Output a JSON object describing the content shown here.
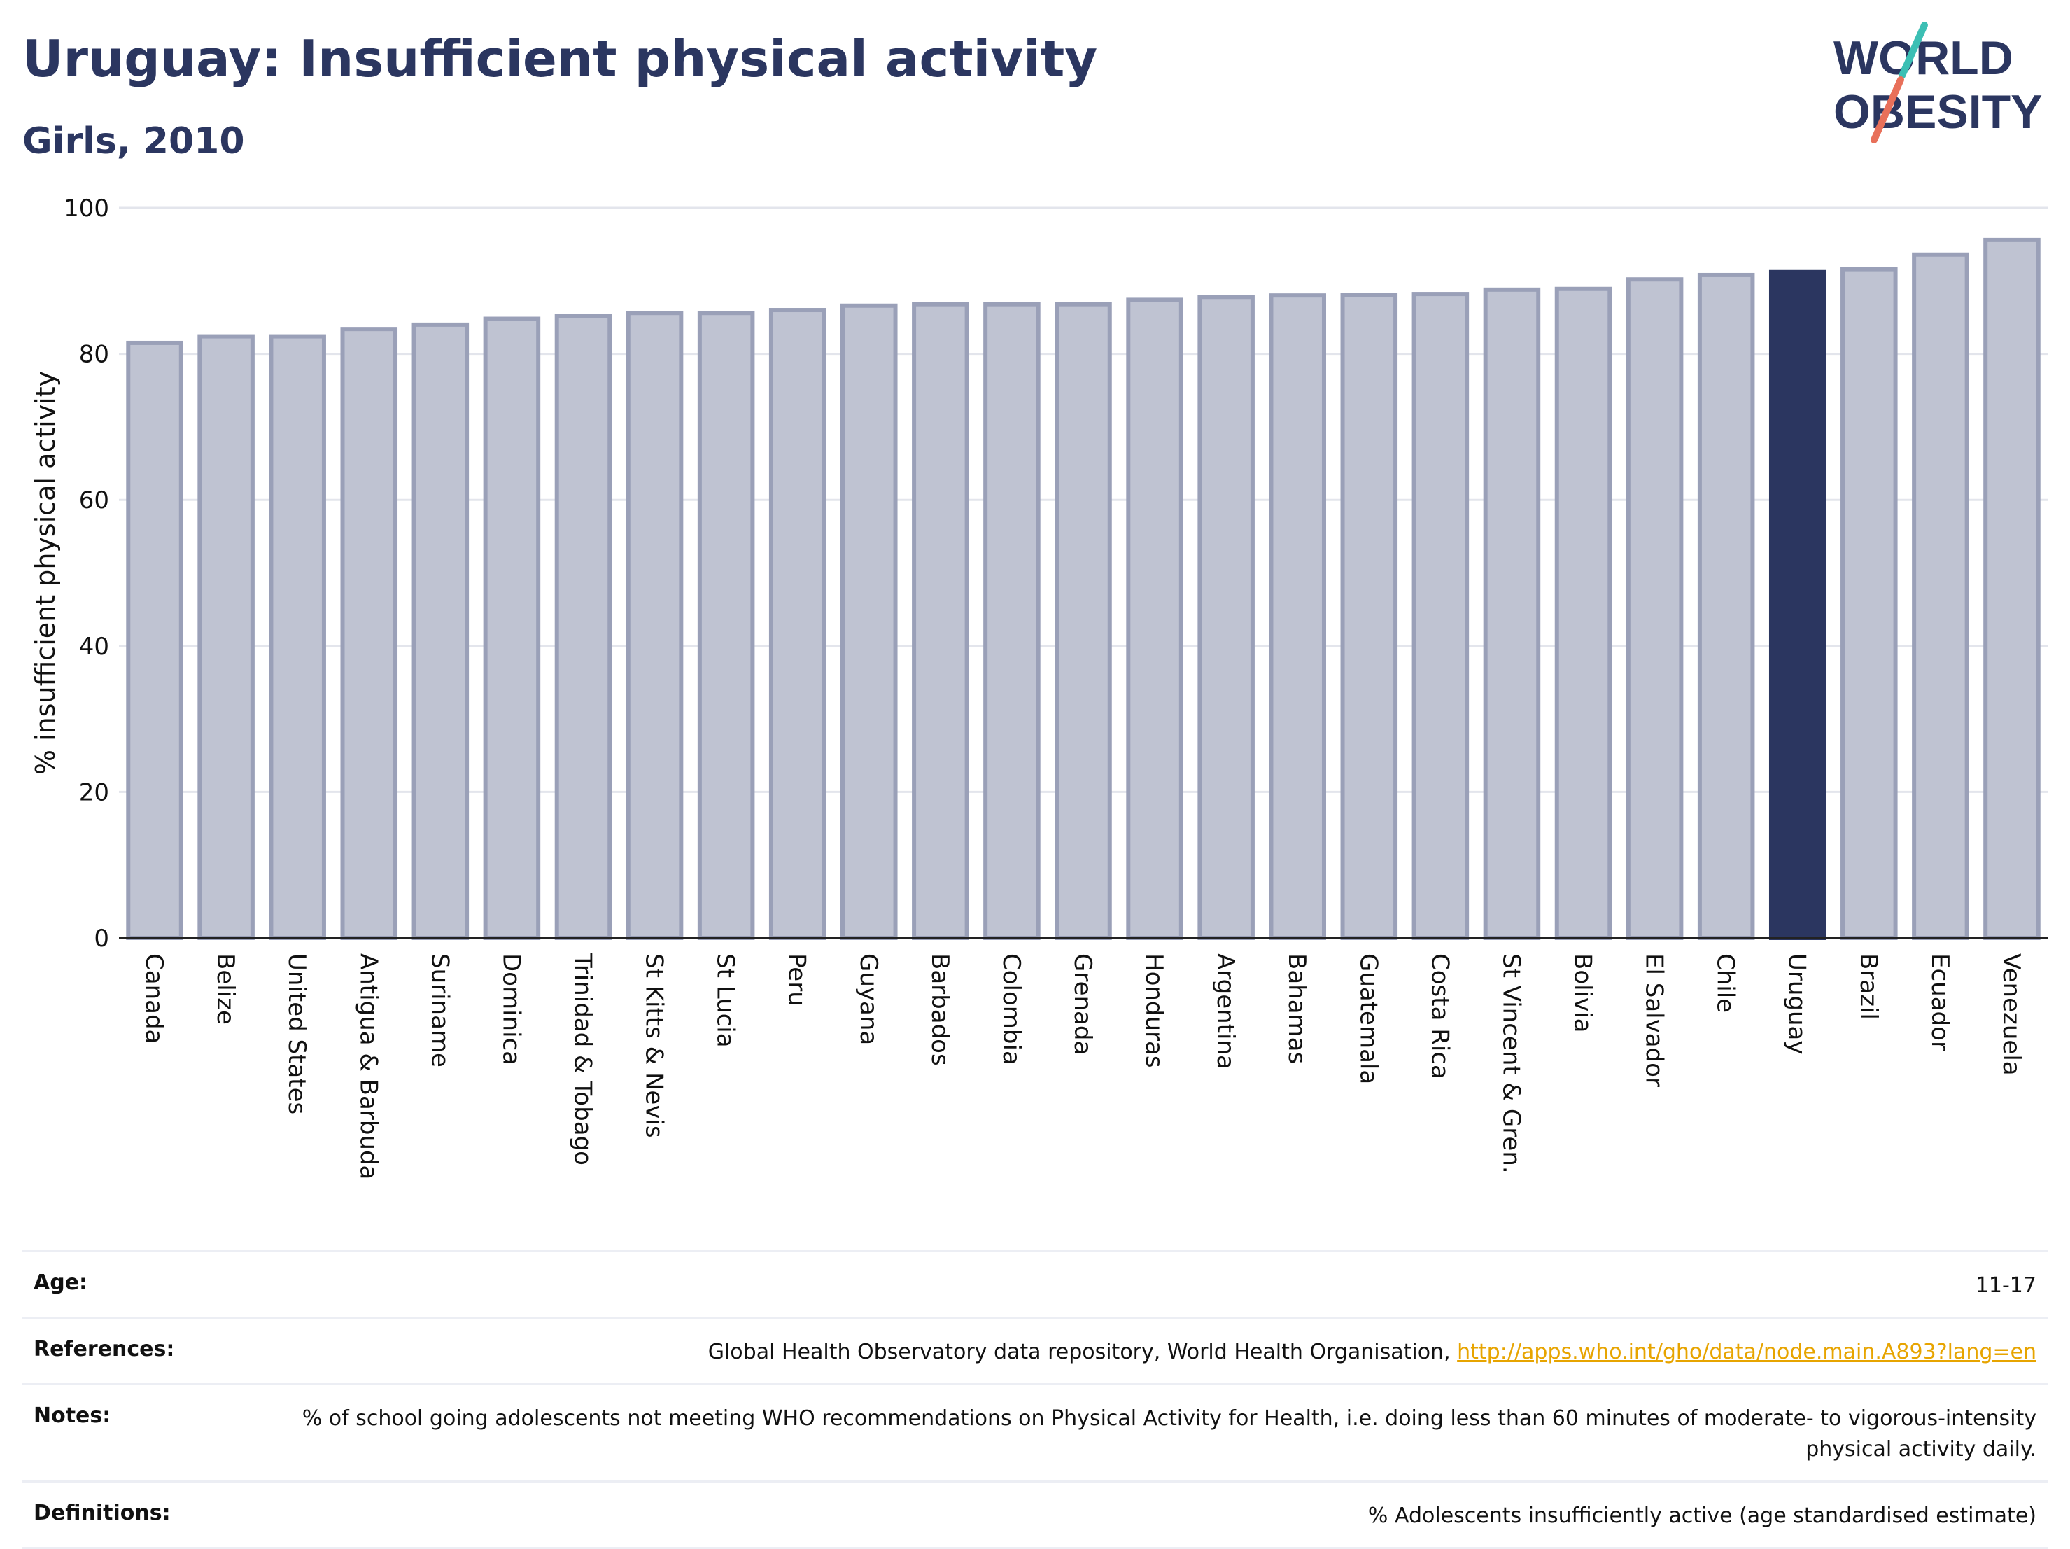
{
  "header": {
    "title": "Uruguay: Insufficient physical activity",
    "subtitle": "Girls, 2010"
  },
  "logo": {
    "line1": "WORLD",
    "line2": "OBESITY"
  },
  "chart_data": {
    "type": "bar",
    "ylabel": "% insufficient physical activity",
    "xlabel": "",
    "ylim": [
      0,
      100
    ],
    "yticks": [
      0,
      20,
      40,
      60,
      80,
      100
    ],
    "grid": true,
    "highlight": "Uruguay",
    "colors": {
      "bar": "#bfc3d2",
      "bar_edge": "#9aa0b8",
      "highlight": "#2b3660",
      "grid": "#e3e5ec",
      "axis": "#222222"
    },
    "categories": [
      "Canada",
      "Belize",
      "United States",
      "Antigua & Barbuda",
      "Suriname",
      "Dominica",
      "Trinidad & Tobago",
      "St Kitts & Nevis",
      "St Lucia",
      "Peru",
      "Guyana",
      "Barbados",
      "Colombia",
      "Grenada",
      "Honduras",
      "Argentina",
      "Bahamas",
      "Guatemala",
      "Costa Rica",
      "St Vincent & Gren.",
      "Bolivia",
      "El Salvador",
      "Chile",
      "Uruguay",
      "Brazil",
      "Ecuador",
      "Venezuela"
    ],
    "values": [
      81.5,
      82.4,
      82.4,
      83.4,
      84.0,
      84.8,
      85.2,
      85.6,
      85.6,
      86.0,
      86.6,
      86.8,
      86.8,
      86.8,
      87.4,
      87.8,
      88.0,
      88.1,
      88.2,
      88.8,
      88.9,
      90.2,
      90.8,
      91.2,
      91.6,
      93.6,
      95.6
    ]
  },
  "info": {
    "age": {
      "label": "Age:",
      "value": "11-17"
    },
    "references": {
      "label": "References:",
      "text": "Global Health Observatory data repository, World Health Organisation, ",
      "link": "http://apps.who.int/gho/data/node.main.A893?lang=en"
    },
    "notes": {
      "label": "Notes:",
      "value": "% of school going adolescents not meeting WHO recommendations on Physical Activity for Health, i.e. doing less than 60 minutes of moderate- to vigorous-intensity physical activity daily."
    },
    "definitions": {
      "label": "Definitions:",
      "value": "% Adolescents insufficiently active (age standardised estimate)"
    }
  }
}
